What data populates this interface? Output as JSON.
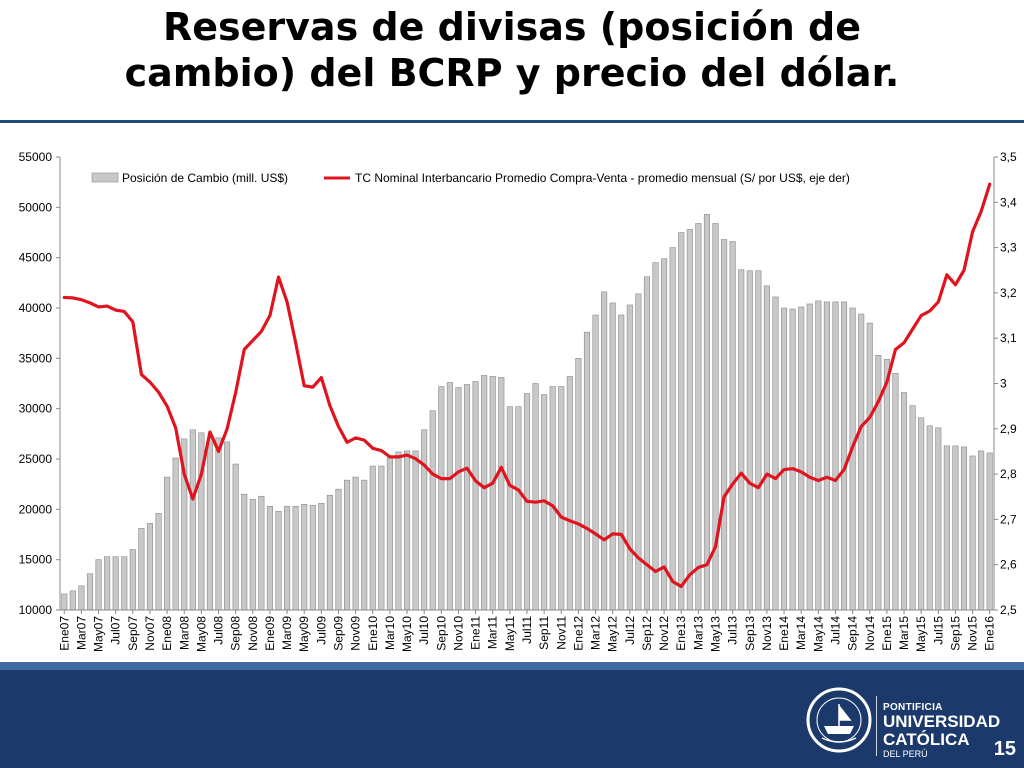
{
  "slide": {
    "title_line1": "Reservas de divisas (posición de",
    "title_line2": "cambio) del BCRP y precio del dólar.",
    "number": "15",
    "logo": {
      "seal_text": "ET LUX IN TENEBRIS LUCET",
      "seal_year": "MCMXVII",
      "line1": "PONTIFICIA",
      "line2": "UNIVERSIDAD",
      "line3": "CATÓLICA",
      "line4": "DEL PERÚ"
    },
    "colors": {
      "footer": "#1b3a6b",
      "rule": "#1f4e79"
    }
  },
  "chart_data": {
    "type": "bar+line",
    "title": "",
    "xlabel": "",
    "ylabel": "",
    "y2label": "",
    "ylim": [
      10000,
      55000
    ],
    "y2lim": [
      2.5,
      3.5
    ],
    "yticks": [
      "10000",
      "15000",
      "20000",
      "25000",
      "30000",
      "35000",
      "40000",
      "45000",
      "50000",
      "55000"
    ],
    "y2ticks": [
      "2,5",
      "2,6",
      "2,7",
      "2,8",
      "2,9",
      "3",
      "3,1",
      "3,2",
      "3,3",
      "3,4",
      "3,5"
    ],
    "grid": false,
    "legend_position": "top",
    "x_labels": [
      "Ene07",
      "Mar07",
      "May07",
      "Jul07",
      "Sep07",
      "Nov07",
      "Ene08",
      "Mar08",
      "May08",
      "Jul08",
      "Sep08",
      "Nov08",
      "Ene09",
      "Mar09",
      "May09",
      "Jul09",
      "Sep09",
      "Nov09",
      "Ene10",
      "Mar10",
      "May10",
      "Jul10",
      "Sep10",
      "Nov10",
      "Ene11",
      "Mar11",
      "May11",
      "Jul11",
      "Sep11",
      "Nov11",
      "Ene12",
      "Mar12",
      "May12",
      "Jul12",
      "Sep12",
      "Nov12",
      "Ene13",
      "Mar13",
      "May13",
      "Jul13",
      "Sep13",
      "Nov13",
      "Ene14",
      "Mar14",
      "May14",
      "Jul14",
      "Sep14",
      "Nov14",
      "Ene15",
      "Mar15",
      "May15",
      "Jul15",
      "Sep15",
      "Nov15",
      "Ene16"
    ],
    "series": [
      {
        "name": "Posición de Cambio (mill. US$)",
        "type": "bar",
        "axis": "left",
        "color": "#c8c8c8",
        "values": [
          11600,
          11900,
          12400,
          13600,
          15000,
          15300,
          15300,
          15300,
          16000,
          18100,
          18600,
          19600,
          23200,
          25100,
          27000,
          27900,
          27600,
          27100,
          27100,
          26700,
          24500,
          21500,
          21000,
          21300,
          20300,
          19800,
          20300,
          20300,
          20500,
          20400,
          20600,
          21400,
          22000,
          22900,
          23200,
          22900,
          24300,
          24300,
          25100,
          25700,
          25800,
          25800,
          27900,
          29800,
          32200,
          32600,
          32100,
          32400,
          32700,
          33300,
          33200,
          33100,
          30200,
          30200,
          31500,
          32500,
          31400,
          32200,
          32200,
          33200,
          35000,
          37600,
          39300,
          41600,
          40500,
          39300,
          40300,
          41400,
          43100,
          44500,
          44900,
          46000,
          47500,
          47800,
          48400,
          49300,
          48400,
          46800,
          46600,
          43800,
          43700,
          43700,
          42200,
          41100,
          40000,
          39900,
          40100,
          40400,
          40700,
          40600,
          40600,
          40600,
          40000,
          39400,
          38500,
          35300,
          34900,
          33500,
          31600,
          30300,
          29100,
          28300,
          28100,
          26300,
          26300,
          26200,
          25300,
          25800,
          25600
        ]
      },
      {
        "name": "TC Nominal Interbancario Promedio Compra-Venta - promedio mensual (S/ por US$, eje der)",
        "type": "line",
        "axis": "right",
        "color": "#e0141e",
        "values": [
          3.19,
          3.189,
          3.185,
          3.178,
          3.169,
          3.171,
          3.162,
          3.159,
          3.136,
          3.02,
          3.003,
          2.981,
          2.95,
          2.902,
          2.8,
          2.745,
          2.8,
          2.893,
          2.85,
          2.9,
          2.98,
          3.075,
          3.095,
          3.115,
          3.15,
          3.235,
          3.18,
          3.09,
          2.995,
          2.992,
          3.013,
          2.951,
          2.905,
          2.87,
          2.88,
          2.875,
          2.857,
          2.852,
          2.838,
          2.838,
          2.842,
          2.834,
          2.82,
          2.8,
          2.79,
          2.79,
          2.805,
          2.813,
          2.785,
          2.77,
          2.78,
          2.815,
          2.775,
          2.765,
          2.74,
          2.738,
          2.741,
          2.73,
          2.705,
          2.697,
          2.69,
          2.68,
          2.668,
          2.655,
          2.668,
          2.667,
          2.635,
          2.615,
          2.6,
          2.585,
          2.595,
          2.563,
          2.552,
          2.578,
          2.594,
          2.6,
          2.64,
          2.75,
          2.778,
          2.802,
          2.78,
          2.77,
          2.8,
          2.79,
          2.81,
          2.812,
          2.805,
          2.793,
          2.786,
          2.793,
          2.786,
          2.81,
          2.86,
          2.905,
          2.925,
          2.96,
          3.003,
          3.075,
          3.09,
          3.12,
          3.15,
          3.16,
          3.18,
          3.24,
          3.218,
          3.25,
          3.335,
          3.38,
          3.44
        ]
      }
    ]
  }
}
